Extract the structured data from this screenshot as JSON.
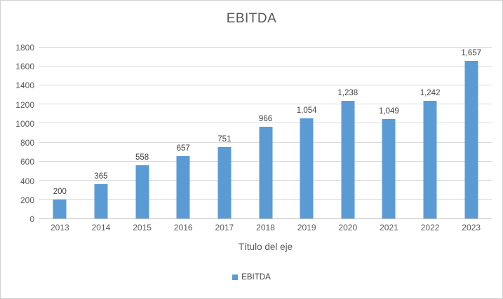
{
  "chart_data": {
    "type": "bar",
    "title": "EBITDA",
    "xlabel": "Título del eje",
    "ylabel": "",
    "categories": [
      "2013",
      "2014",
      "2015",
      "2016",
      "2017",
      "2018",
      "2019",
      "2020",
      "2021",
      "2022",
      "2023"
    ],
    "values": [
      200,
      365,
      558,
      657,
      751,
      966,
      1054,
      1238,
      1049,
      1242,
      1657
    ],
    "value_labels": [
      "200",
      "365",
      "558",
      "657",
      "751",
      "966",
      "1,054",
      "1,238",
      "1,049",
      "1,242",
      "1,657"
    ],
    "ylim": [
      0,
      1800
    ],
    "yticks": [
      0,
      200,
      400,
      600,
      800,
      1000,
      1200,
      1400,
      1600,
      1800
    ],
    "ytick_labels": [
      "0",
      "200",
      "400",
      "600",
      "800",
      "1000",
      "1200",
      "1400",
      "1600",
      "1800"
    ],
    "grid": true,
    "legend": {
      "position": "bottom",
      "entries": [
        {
          "label": "EBITDA",
          "color": "#5B9BD5"
        }
      ]
    },
    "colors": {
      "bar": "#5B9BD5",
      "title_text": "#595959",
      "axis_text": "#595959",
      "data_label_text": "#404040",
      "gridline": "#D9D9D9",
      "axis_line": "#BFBFBF",
      "frame_border": "#D0D0D0",
      "background": "#FFFFFF"
    }
  }
}
